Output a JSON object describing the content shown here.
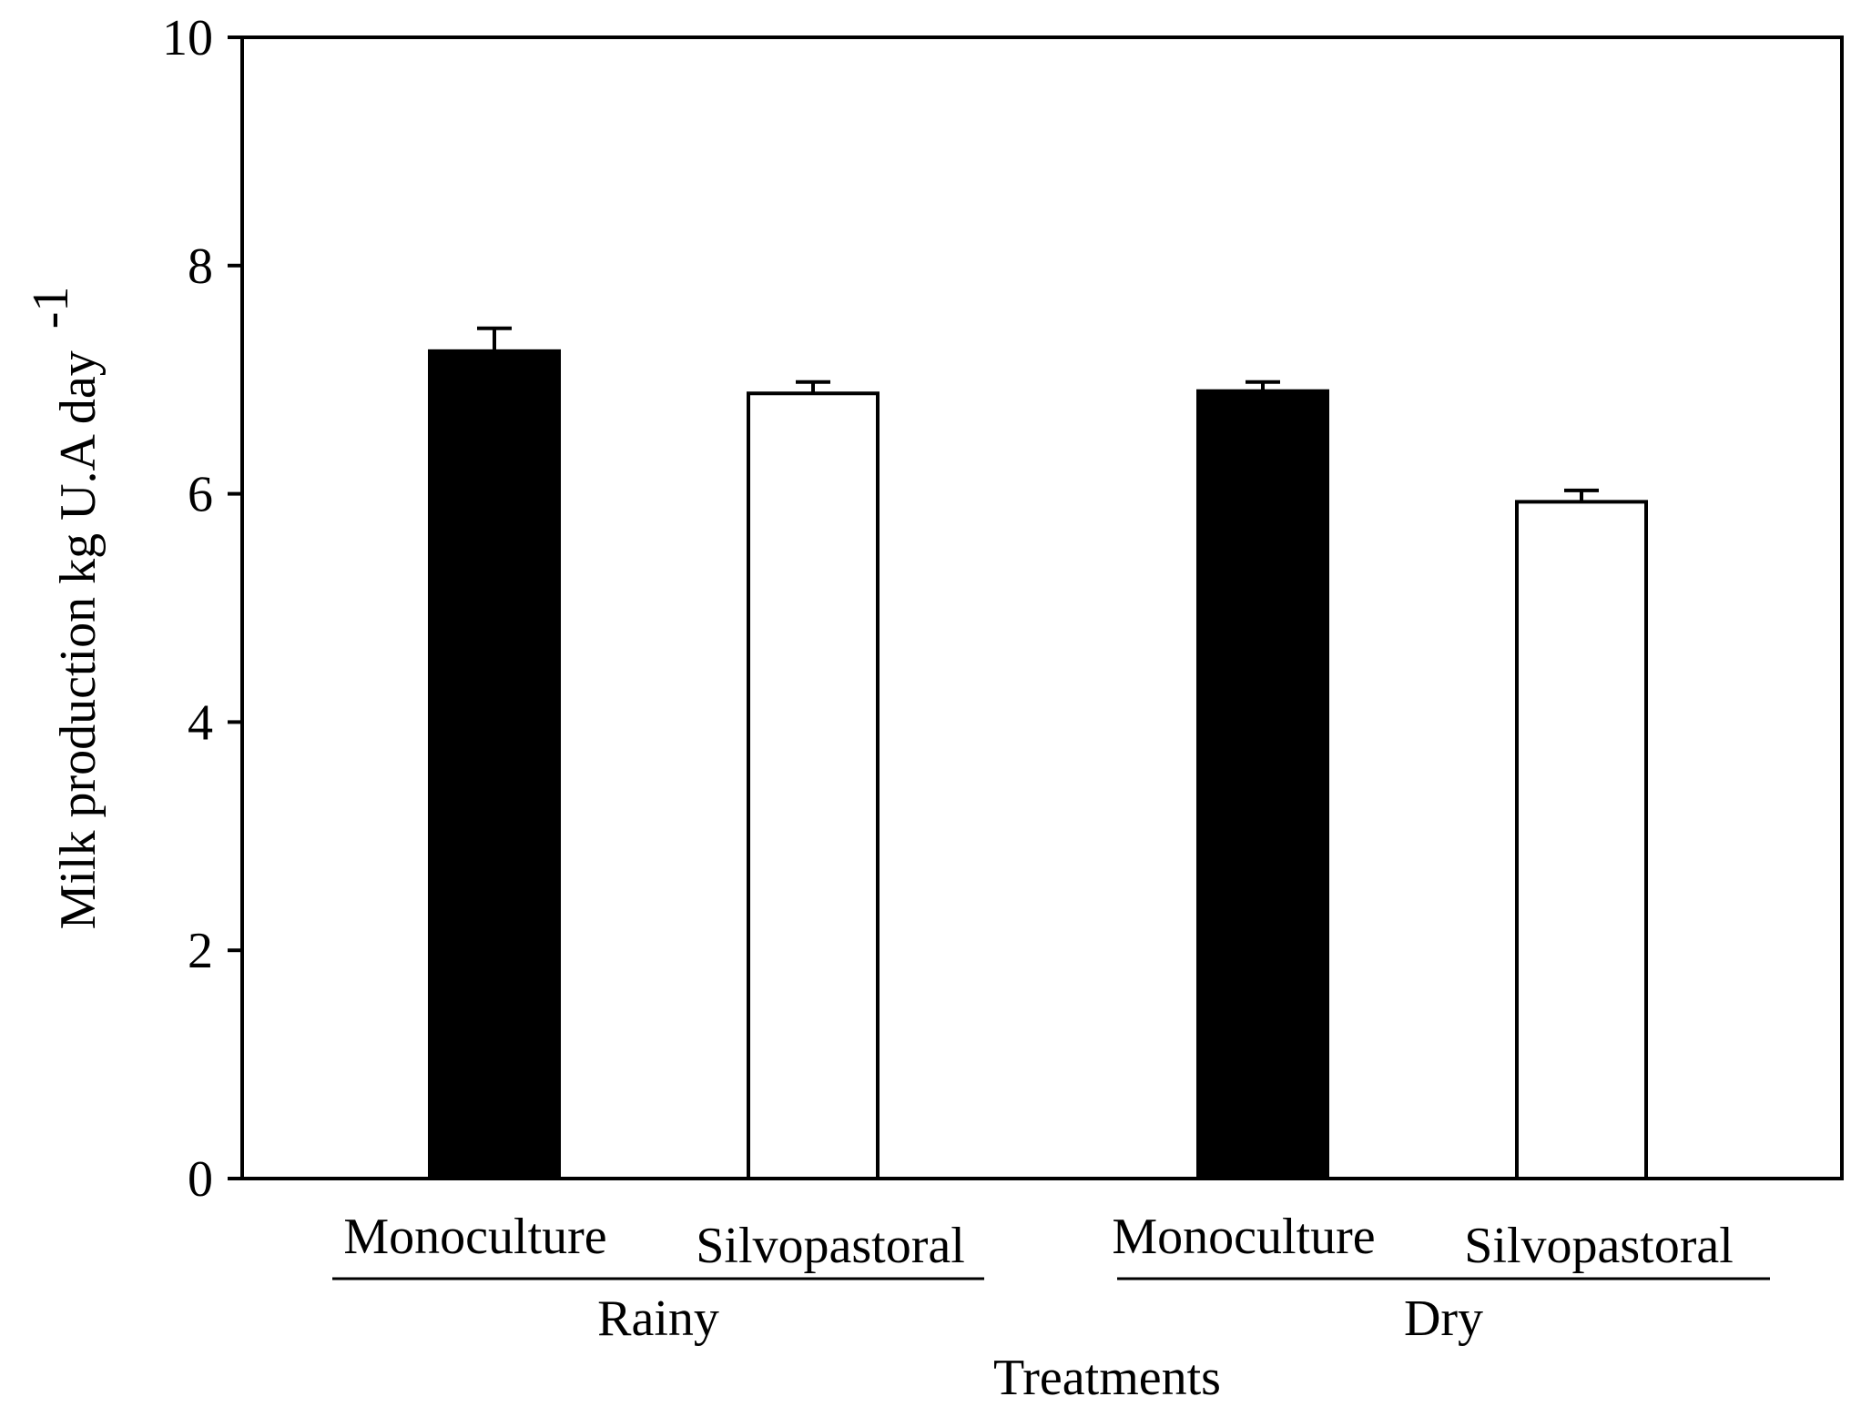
{
  "chart_data": {
    "type": "bar",
    "title": "",
    "xlabel": "Treatments",
    "ylabel": "Milk production kg U.A day",
    "ylabel_superscript": "-1",
    "ylim": [
      0,
      10
    ],
    "yticks": [
      "0",
      "2",
      "4",
      "6",
      "8",
      "10"
    ],
    "groups": [
      {
        "name": "Rainy",
        "bars": [
          {
            "category": "Monoculture",
            "value": 7.25,
            "error": 0.2,
            "fill": "#000000"
          },
          {
            "category": "Silvopastoral",
            "value": 6.88,
            "error": 0.1,
            "fill": "#ffffff"
          }
        ]
      },
      {
        "name": "Dry",
        "bars": [
          {
            "category": "Monoculture",
            "value": 6.9,
            "error": 0.08,
            "fill": "#000000"
          },
          {
            "category": "Silvopastoral",
            "value": 5.93,
            "error": 0.1,
            "fill": "#ffffff"
          }
        ]
      }
    ],
    "grid": false,
    "legend": "none"
  }
}
